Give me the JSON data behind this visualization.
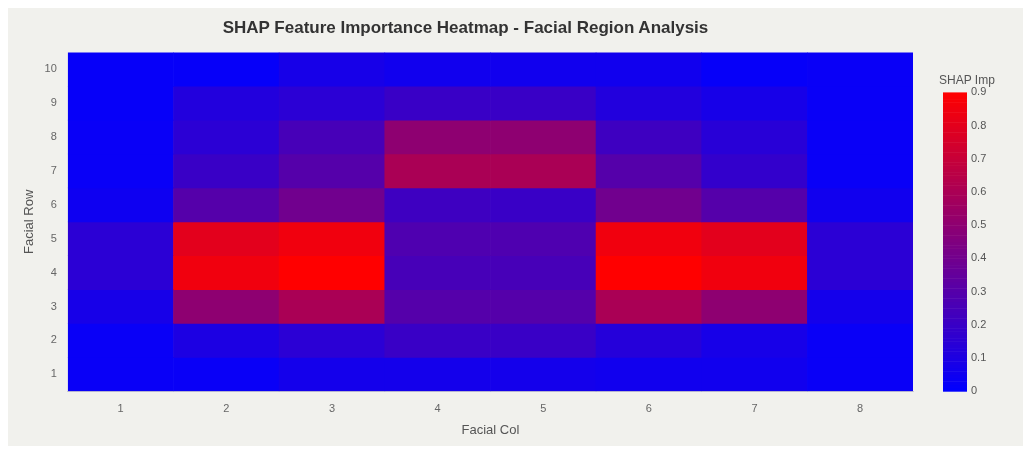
{
  "chart_data": {
    "type": "heatmap",
    "title": "SHAP Feature Importance Heatmap - Facial Region Analysis",
    "xlabel": "Facial Col",
    "ylabel": "Facial Row",
    "clabel": "SHAP Imp",
    "categories": [
      "1",
      "2",
      "3",
      "4",
      "5",
      "6",
      "7",
      "8"
    ],
    "y_categories": [
      "10",
      "9",
      "8",
      "7",
      "6",
      "5",
      "4",
      "3",
      "2",
      "1"
    ],
    "cells": [
      [
        0.02,
        0.02,
        0.08,
        0.06,
        0.06,
        0.06,
        0.02,
        0.03
      ],
      [
        0.02,
        0.12,
        0.15,
        0.2,
        0.2,
        0.12,
        0.08,
        0.03
      ],
      [
        0.03,
        0.15,
        0.25,
        0.5,
        0.5,
        0.22,
        0.14,
        0.03
      ],
      [
        0.03,
        0.2,
        0.3,
        0.6,
        0.6,
        0.3,
        0.18,
        0.03
      ],
      [
        0.05,
        0.3,
        0.4,
        0.22,
        0.2,
        0.4,
        0.3,
        0.06
      ],
      [
        0.15,
        0.8,
        0.85,
        0.28,
        0.28,
        0.85,
        0.8,
        0.15
      ],
      [
        0.15,
        0.85,
        0.9,
        0.25,
        0.25,
        0.9,
        0.85,
        0.15
      ],
      [
        0.08,
        0.5,
        0.6,
        0.3,
        0.3,
        0.6,
        0.5,
        0.07
      ],
      [
        0.03,
        0.1,
        0.15,
        0.2,
        0.2,
        0.13,
        0.08,
        0.03
      ],
      [
        0.03,
        0.03,
        0.07,
        0.07,
        0.07,
        0.06,
        0.06,
        0.03
      ]
    ],
    "clim": [
      0,
      0.9
    ],
    "cticks": [
      0,
      0.1,
      0.2,
      0.3,
      0.4,
      0.5,
      0.6,
      0.7,
      0.8,
      0.9
    ]
  }
}
